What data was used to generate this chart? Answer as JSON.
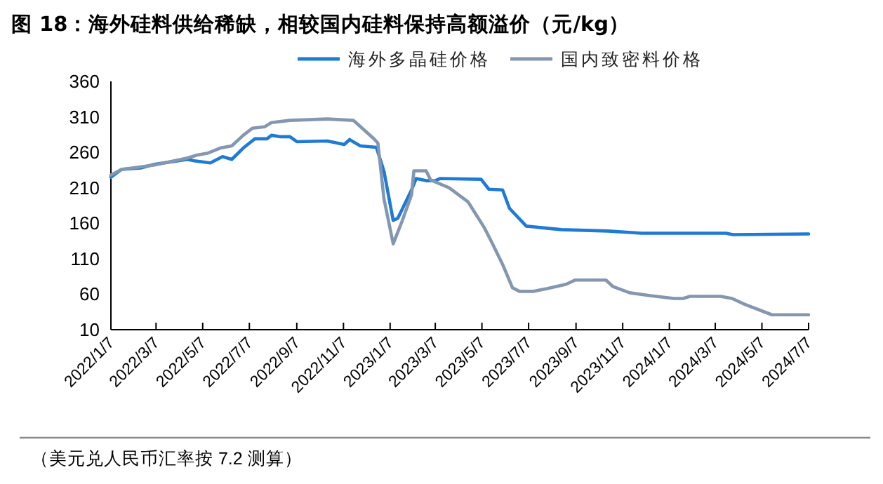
{
  "chart_data": {
    "type": "line",
    "title": "图 18：海外硅料供给稀缺，相较国内硅料保持高额溢价（元/kg）",
    "annotations": [
      "（美元兑人民币汇率按 7.2 测算）"
    ],
    "series": [
      {
        "name": "海外多晶硅价格",
        "color": "#1f7ad6",
        "x": [
          "2022-01-07",
          "2022-01-21",
          "2022-02-15",
          "2022-03-05",
          "2022-04-17",
          "2022-04-26",
          "2022-05-17",
          "2022-06-02",
          "2022-06-14",
          "2022-06-29",
          "2022-07-14",
          "2022-07-30",
          "2022-08-05",
          "2022-08-17",
          "2022-08-29",
          "2022-09-07",
          "2022-10-17",
          "2022-11-08",
          "2022-11-15",
          "2022-11-29",
          "2022-12-20",
          "2022-12-30",
          "2023-01-11",
          "2023-01-17",
          "2023-02-04",
          "2023-02-10",
          "2023-02-23",
          "2023-03-07",
          "2023-03-13",
          "2023-05-06",
          "2023-05-16",
          "2023-06-03",
          "2023-06-12",
          "2023-07-04",
          "2023-08-19",
          "2023-10-19",
          "2023-12-02",
          "2024-03-21",
          "2024-03-30",
          "2024-07-07"
        ],
        "values": [
          225,
          236,
          238,
          243,
          250,
          248,
          245,
          254,
          250,
          266,
          279,
          279,
          284,
          282,
          282,
          275,
          276,
          271,
          278,
          269,
          267,
          233,
          164,
          167,
          207,
          223,
          220,
          220,
          223,
          222,
          208,
          207,
          181,
          156,
          151,
          149,
          146,
          146,
          144,
          145
        ]
      },
      {
        "name": "国内致密料价格",
        "color": "#8497b0",
        "x": [
          "2022-01-07",
          "2022-01-21",
          "2022-03-05",
          "2022-04-17",
          "2022-04-29",
          "2022-05-14",
          "2022-05-30",
          "2022-06-14",
          "2022-06-29",
          "2022-07-11",
          "2022-07-27",
          "2022-08-05",
          "2022-08-29",
          "2022-10-17",
          "2022-11-20",
          "2022-12-17",
          "2022-12-22",
          "2022-12-30",
          "2023-01-11",
          "2023-01-23",
          "2023-02-04",
          "2023-02-07",
          "2023-02-23",
          "2023-03-01",
          "2023-03-25",
          "2023-04-19",
          "2023-05-10",
          "2023-05-19",
          "2023-06-03",
          "2023-06-16",
          "2023-06-25",
          "2023-07-13",
          "2023-08-01",
          "2023-08-25",
          "2023-09-06",
          "2023-10-16",
          "2023-10-25",
          "2023-11-16",
          "2023-12-13",
          "2024-01-13",
          "2024-01-25",
          "2024-02-03",
          "2024-03-14",
          "2024-03-29",
          "2024-04-14",
          "2024-05-20",
          "2024-07-07"
        ],
        "values": [
          228,
          236,
          242,
          252,
          256,
          259,
          266,
          269,
          284,
          294,
          296,
          302,
          305,
          307,
          305,
          279,
          273,
          194,
          131,
          164,
          200,
          234,
          234,
          221,
          210,
          190,
          154,
          135,
          102,
          69,
          64,
          64,
          68,
          74,
          80,
          80,
          71,
          62,
          58,
          54,
          54,
          57,
          57,
          54,
          46,
          31,
          31
        ]
      }
    ],
    "xlim": [
      "2022-01-07",
      "2024-07-07"
    ],
    "xticks": [
      {
        "value": "2022-01-07",
        "label": "2022/1/7"
      },
      {
        "value": "2022-03-07",
        "label": "2022/3/7"
      },
      {
        "value": "2022-05-07",
        "label": "2022/5/7"
      },
      {
        "value": "2022-07-07",
        "label": "2022/7/7"
      },
      {
        "value": "2022-09-07",
        "label": "2022/9/7"
      },
      {
        "value": "2022-11-07",
        "label": "2022/11/7"
      },
      {
        "value": "2023-01-07",
        "label": "2023/1/7"
      },
      {
        "value": "2023-03-07",
        "label": "2023/3/7"
      },
      {
        "value": "2023-05-07",
        "label": "2023/5/7"
      },
      {
        "value": "2023-07-07",
        "label": "2023/7/7"
      },
      {
        "value": "2023-09-07",
        "label": "2023/9/7"
      },
      {
        "value": "2023-11-07",
        "label": "2023/11/7"
      },
      {
        "value": "2024-01-07",
        "label": "2024/1/7"
      },
      {
        "value": "2024-03-07",
        "label": "2024/3/7"
      },
      {
        "value": "2024-05-07",
        "label": "2024/5/7"
      },
      {
        "value": "2024-07-07",
        "label": "2024/7/7"
      }
    ],
    "ylim": [
      10,
      360
    ],
    "yticks": [
      10,
      60,
      110,
      160,
      210,
      260,
      310,
      360
    ],
    "grid": false,
    "legend": "top",
    "marker": "none",
    "line_style": "solid"
  }
}
